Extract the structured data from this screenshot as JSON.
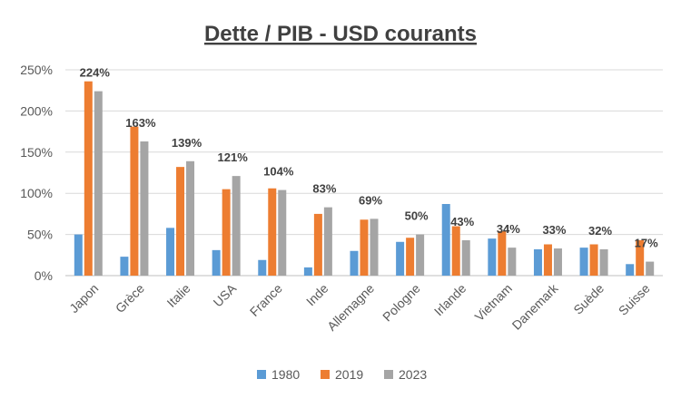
{
  "chart_data": {
    "type": "bar",
    "title": "Dette / PIB - USD courants",
    "categories": [
      "Japon",
      "Grèce",
      "Italie",
      "USA",
      "France",
      "Inde",
      "Allemagne",
      "Pologne",
      "Irlande",
      "Vietnam",
      "Danemark",
      "Suède",
      "Suisse"
    ],
    "series": [
      {
        "name": "1980",
        "color": "#5b9bd5",
        "values": [
          50,
          23,
          58,
          31,
          19,
          10,
          30,
          41,
          87,
          45,
          32,
          34,
          14
        ]
      },
      {
        "name": "2019",
        "color": "#ed7d31",
        "values": [
          236,
          181,
          132,
          105,
          106,
          75,
          68,
          46,
          60,
          54,
          38,
          38,
          43
        ]
      },
      {
        "name": "2023",
        "color": "#a5a5a5",
        "values": [
          224,
          163,
          139,
          121,
          104,
          83,
          69,
          50,
          43,
          34,
          33,
          32,
          17
        ]
      }
    ],
    "data_labels": [
      "224%",
      "163%",
      "139%",
      "121%",
      "104%",
      "83%",
      "69%",
      "50%",
      "43%",
      "34%",
      "33%",
      "32%",
      "17%"
    ],
    "ylim": [
      0,
      250
    ],
    "yticks": [
      0,
      50,
      100,
      150,
      200,
      250
    ],
    "ytick_labels": [
      "0%",
      "50%",
      "100%",
      "150%",
      "200%",
      "250%"
    ],
    "grid": true,
    "legend_position": "bottom"
  }
}
